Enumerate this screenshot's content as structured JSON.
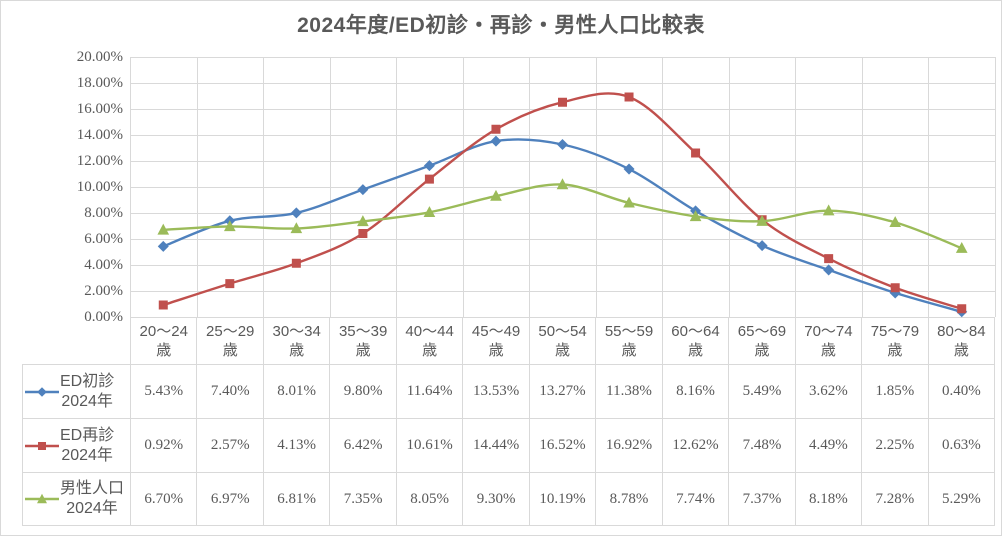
{
  "colors": {
    "background": "#ffffff",
    "grid": "#d9d9d9",
    "border": "#d9d9d9",
    "text": "#595959",
    "title_text": "#595959",
    "series_blue": "#4F81BD",
    "series_red": "#C0504D",
    "series_green": "#9BBB59"
  },
  "chart_data": {
    "type": "line",
    "title": "2024年度/ED初診・再診・男性人口比較表",
    "categories": [
      "20〜24",
      "25〜29",
      "30〜34",
      "35〜39",
      "40〜44",
      "45〜49",
      "50〜54",
      "55〜59",
      "60〜64",
      "65〜69",
      "70〜74",
      "75〜79",
      "80〜84"
    ],
    "category_suffix": "歳",
    "series": [
      {
        "name": "ED初診 2024年",
        "name_lines": [
          "ED初診",
          "2024年"
        ],
        "color": "#4F81BD",
        "marker": "diamond",
        "values": [
          5.43,
          7.4,
          8.01,
          9.8,
          11.64,
          13.53,
          13.27,
          11.38,
          8.16,
          5.49,
          3.62,
          1.85,
          0.4
        ]
      },
      {
        "name": "ED再診 2024年",
        "name_lines": [
          "ED再診",
          "2024年"
        ],
        "color": "#C0504D",
        "marker": "square",
        "values": [
          0.92,
          2.57,
          4.13,
          6.42,
          10.61,
          14.44,
          16.52,
          16.92,
          12.62,
          7.48,
          4.49,
          2.25,
          0.63
        ]
      },
      {
        "name": "男性人口 2024年",
        "name_lines": [
          "男性人口",
          "2024年"
        ],
        "color": "#9BBB59",
        "marker": "triangle",
        "values": [
          6.7,
          6.97,
          6.81,
          7.35,
          8.05,
          9.3,
          10.19,
          8.78,
          7.74,
          7.37,
          8.18,
          7.28,
          5.29
        ]
      }
    ],
    "y_ticks": [
      "0.00%",
      "2.00%",
      "4.00%",
      "6.00%",
      "8.00%",
      "10.00%",
      "12.00%",
      "14.00%",
      "16.00%",
      "18.00%",
      "20.00%"
    ],
    "ylim": [
      0,
      20
    ],
    "y_tick_step": 2,
    "grid": true,
    "smooth_lines": true,
    "value_format": "0.00%",
    "legend_position": "data-table-left"
  }
}
